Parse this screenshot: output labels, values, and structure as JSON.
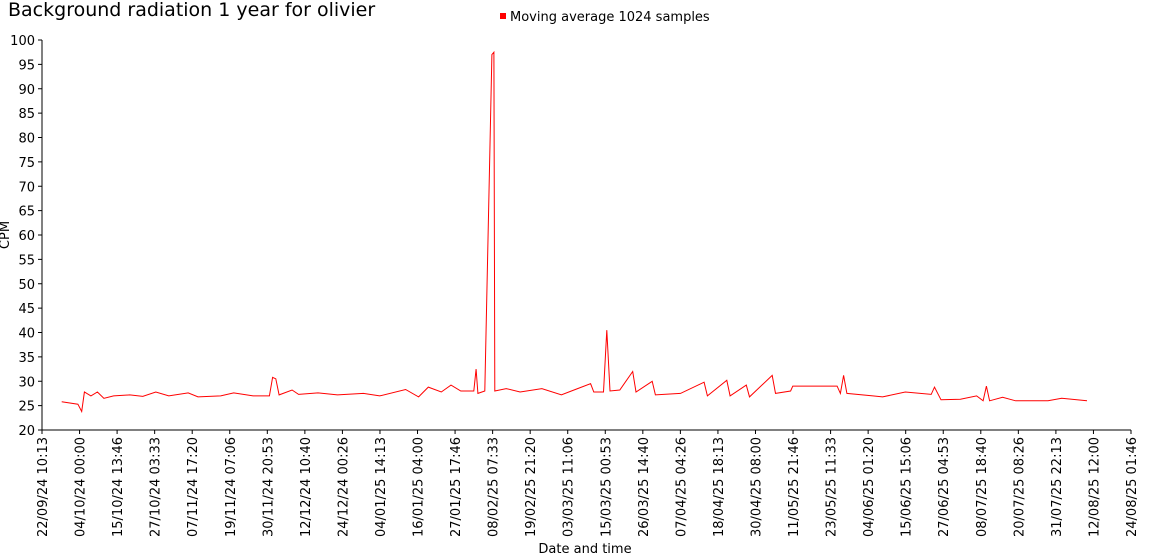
{
  "chart_data": {
    "type": "line",
    "title": "Background radiation 1 year for olivier",
    "x_label": "Date and time",
    "y_label": "CPM",
    "legend": "top",
    "xlim": [
      "22/09/24 10:13",
      "24/08/25 01:46"
    ],
    "xticks": [
      "22/09/24 10:13",
      "04/10/24 00:00",
      "15/10/24 13:46",
      "27/10/24 03:33",
      "07/11/24 17:20",
      "19/11/24 07:06",
      "30/11/24 20:53",
      "12/12/24 10:40",
      "24/12/24 00:26",
      "04/01/25 14:13",
      "16/01/25 04:00",
      "27/01/25 17:46",
      "08/02/25 07:33",
      "19/02/25 21:20",
      "03/03/25 11:06",
      "15/03/25 00:53",
      "26/03/25 14:40",
      "07/04/25 04:26",
      "18/04/25 18:13",
      "30/04/25 08:00",
      "11/05/25 21:46",
      "23/05/25 11:33",
      "04/06/25 01:20",
      "15/06/25 15:06",
      "27/06/25 04:53",
      "08/07/25 18:40",
      "20/07/25 08:26",
      "31/07/25 22:13",
      "12/08/25 12:00",
      "24/08/25 01:46"
    ],
    "ylim": [
      20,
      100
    ],
    "yticks": [
      20,
      25,
      30,
      35,
      40,
      45,
      50,
      55,
      60,
      65,
      70,
      75,
      80,
      85,
      90,
      95,
      100
    ],
    "x": [
      "28/09/24 12:00",
      "03/10/24 12:00",
      "04/10/24 16:00",
      "05/10/24 12:00",
      "07/10/24 12:00",
      "09/10/24 12:00",
      "11/10/24 12:00",
      "14/10/24 12:00",
      "19/10/24 12:00",
      "23/10/24 12:00",
      "27/10/24 12:00",
      "31/10/24 12:00",
      "06/11/24 12:00",
      "09/11/24 12:00",
      "16/11/24 12:00",
      "20/11/24 12:00",
      "26/11/24 12:00",
      "01/12/24 12:00",
      "02/12/24 12:00",
      "03/12/24 12:00",
      "04/12/24 12:00",
      "08/12/24 12:00",
      "10/12/24 12:00",
      "16/12/24 12:00",
      "22/12/24 12:00",
      "30/12/24 12:00",
      "04/01/25 12:00",
      "12/01/25 12:00",
      "16/01/25 12:00",
      "19/01/25 12:00",
      "23/01/25 12:00",
      "26/01/25 12:00",
      "29/01/25 12:00",
      "02/02/25 12:00",
      "03/02/25 05:00",
      "03/02/25 19:00",
      "05/02/25 22:00",
      "08/02/25 02:00",
      "08/02/25 17:00",
      "09/02/25 00:00",
      "12/02/25 12:00",
      "16/02/25 19:00",
      "23/02/25 12:00",
      "01/03/25 12:00",
      "05/03/25 19:00",
      "10/03/25 12:00",
      "11/03/25 12:00",
      "14/03/25 12:00",
      "15/03/25 12:00",
      "16/03/25 12:00",
      "19/03/25 12:00",
      "23/03/25 12:00",
      "24/03/25 12:00",
      "29/03/25 12:00",
      "30/03/25 12:00",
      "07/04/25 05:00",
      "14/04/25 12:00",
      "15/04/25 12:00",
      "21/04/25 12:00",
      "22/04/25 12:00",
      "27/04/25 12:00",
      "28/04/25 12:00",
      "05/05/25 12:00",
      "06/05/25 12:00",
      "11/05/25 04:00",
      "11/05/25 20:00",
      "25/05/25 12:00",
      "26/05/25 12:00",
      "27/05/25 12:00",
      "28/05/25 12:00",
      "05/06/25 12:00",
      "08/06/25 12:00",
      "15/06/25 12:00",
      "23/06/25 12:00",
      "24/06/25 12:00",
      "26/06/25 12:00",
      "02/07/25 12:00",
      "07/07/25 12:00",
      "09/07/25 12:00",
      "10/07/25 12:00",
      "11/07/25 12:00",
      "15/07/25 12:00",
      "19/07/25 12:00",
      "29/07/25 12:00",
      "02/08/25 17:00",
      "10/08/25 12:00"
    ],
    "series": [
      {
        "name": "Moving average 1024 samples",
        "color": "#ff0000",
        "values": [
          25.8,
          25.3,
          23.8,
          27.8,
          27.0,
          27.8,
          26.5,
          27.0,
          27.2,
          26.9,
          27.8,
          27.0,
          27.6,
          26.8,
          27.0,
          27.6,
          27.0,
          27.0,
          30.8,
          30.5,
          27.2,
          28.2,
          27.3,
          27.6,
          27.2,
          27.5,
          27.0,
          28.3,
          26.8,
          28.8,
          27.8,
          29.2,
          28.0,
          28.0,
          32.5,
          27.5,
          28.0,
          97.0,
          97.5,
          28.0,
          28.5,
          27.8,
          28.5,
          27.2,
          28.3,
          29.5,
          27.8,
          27.8,
          40.5,
          28.0,
          28.2,
          32.0,
          27.8,
          30.0,
          27.2,
          27.5,
          29.8,
          27.0,
          30.2,
          27.0,
          29.2,
          26.8,
          31.2,
          27.5,
          28.0,
          29.0,
          29.0,
          27.5,
          31.2,
          27.5,
          27.0,
          26.8,
          27.8,
          27.3,
          28.8,
          26.2,
          26.3,
          27.0,
          26.0,
          29.0,
          26.0,
          26.7,
          26.0,
          26.0,
          26.5,
          26.0
        ]
      }
    ]
  }
}
